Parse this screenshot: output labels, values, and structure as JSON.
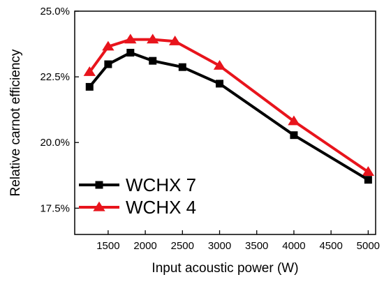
{
  "chart_data": {
    "type": "line",
    "title": "",
    "xlabel": "Input acoustic power (W)",
    "ylabel": "Relative carnot efficiency",
    "xlim": [
      1050,
      5100
    ],
    "ylim": [
      0.165,
      0.25
    ],
    "xticks": [
      1500,
      2000,
      2500,
      3000,
      3500,
      4000,
      4500,
      5000
    ],
    "xtick_labels": [
      "1500",
      "2000",
      "2500",
      "3000",
      "3500",
      "4000",
      "4500",
      "5000"
    ],
    "yticks": [
      0.175,
      0.2,
      0.225,
      0.25
    ],
    "ytick_labels": [
      "17.5%",
      "20.0%",
      "22.5%",
      "25.0%"
    ],
    "grid": false,
    "legend_position": "bottom-left",
    "series": [
      {
        "name": "WCHX 7",
        "color": "#000000",
        "marker": "square",
        "x": [
          1250,
          1500,
          1800,
          2100,
          2500,
          3000,
          4000,
          5000
        ],
        "y": [
          0.2212,
          0.2298,
          0.2342,
          0.2311,
          0.2287,
          0.2224,
          0.2028,
          0.1858
        ]
      },
      {
        "name": "WCHX 4",
        "color": "#e8141c",
        "marker": "triangle",
        "x": [
          1250,
          1500,
          1800,
          2100,
          2400,
          3000,
          4000,
          5000
        ],
        "y": [
          0.2268,
          0.2365,
          0.2392,
          0.2392,
          0.2385,
          0.2292,
          0.2081,
          0.1888
        ]
      }
    ]
  }
}
